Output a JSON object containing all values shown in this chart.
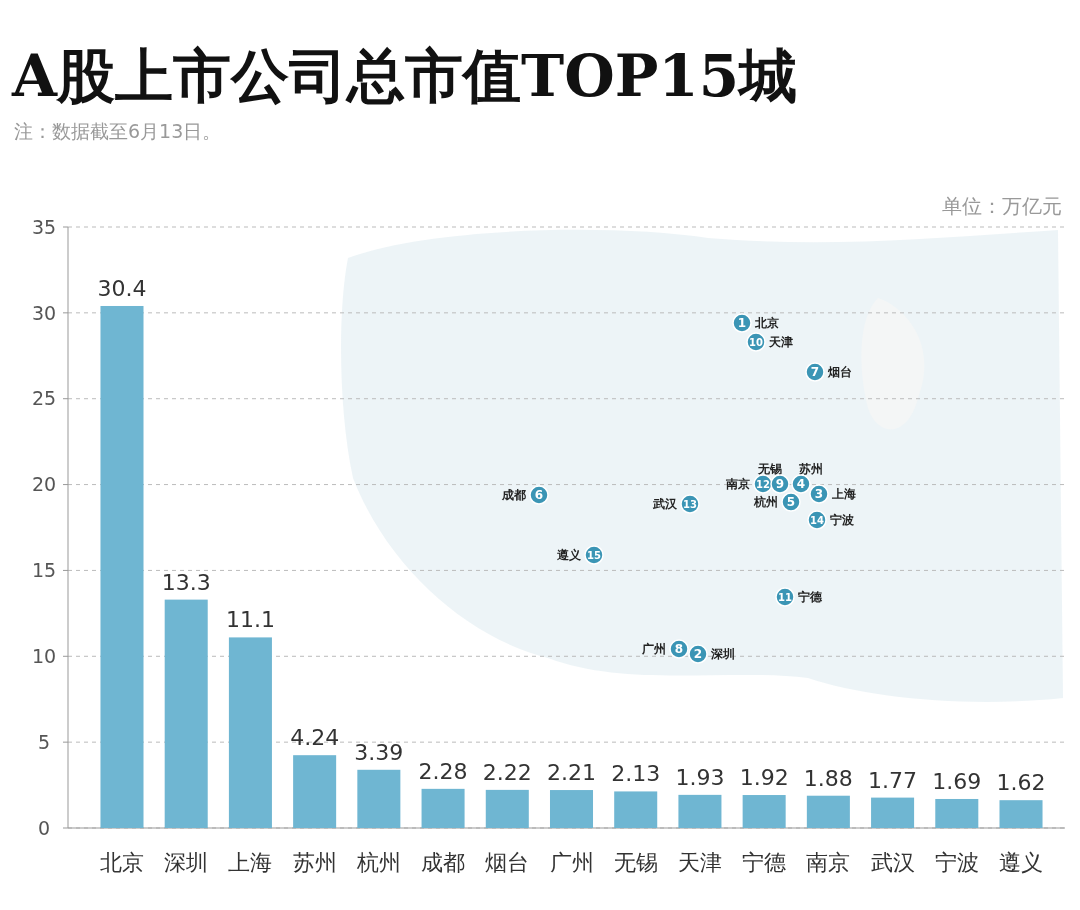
{
  "chart_data": {
    "type": "bar",
    "title": "A股上市公司总市值TOP15城",
    "categories": [
      "北京",
      "深圳",
      "上海",
      "苏州",
      "杭州",
      "成都",
      "烟台",
      "广州",
      "无锡",
      "天津",
      "宁德",
      "南京",
      "武汉",
      "宁波",
      "遵义"
    ],
    "values": [
      30.4,
      13.3,
      11.1,
      4.24,
      3.39,
      2.28,
      2.22,
      2.21,
      2.13,
      1.93,
      1.92,
      1.88,
      1.77,
      1.69,
      1.62
    ],
    "color": "#6fb6d2",
    "ylim": [
      0,
      35
    ],
    "yticks": [
      0,
      5,
      10,
      15,
      20,
      25,
      30,
      35
    ],
    "grid": "y",
    "data_labels": true,
    "annotations": [
      "注：数据截至6月13日。",
      "单位：万亿元",
      "1 北京",
      "10 天津",
      "7 烟台",
      "南京 12",
      "无锡 9",
      "苏州 4",
      "杭州 5",
      "3 上海",
      "14 宁波",
      "成都 6",
      "武汉 13",
      "遵义 15",
      "11 宁德",
      "广州 8",
      "2 深圳"
    ]
  }
}
